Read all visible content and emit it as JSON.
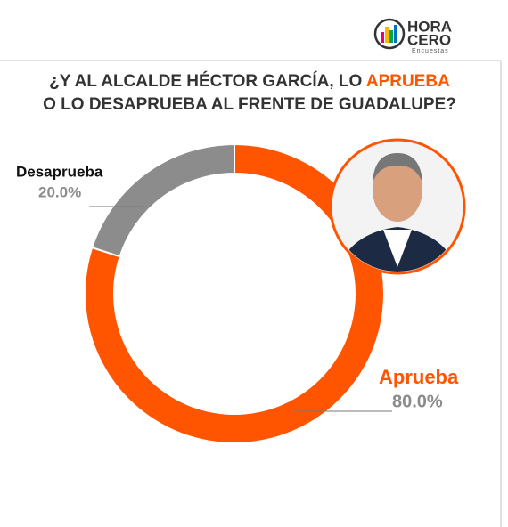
{
  "logo": {
    "line1": "HORA",
    "line2": "CERO",
    "line3": "Encuestas"
  },
  "chart_data": {
    "type": "donut",
    "title_line1": "¿Y AL ALCALDE HÉCTOR GARCÍA, LO ",
    "title_line1_highlight": "APRUEBA",
    "title_line2": "O LO DESAPRUEBA AL FRENTE DE GUADALUPE?",
    "categories": [
      "Aprueba",
      "Desaprueba"
    ],
    "values": [
      80,
      20
    ],
    "value_labels": [
      "80.0%",
      "20.0%"
    ],
    "colors": [
      "#ff5500",
      "#8c8c8c"
    ]
  }
}
